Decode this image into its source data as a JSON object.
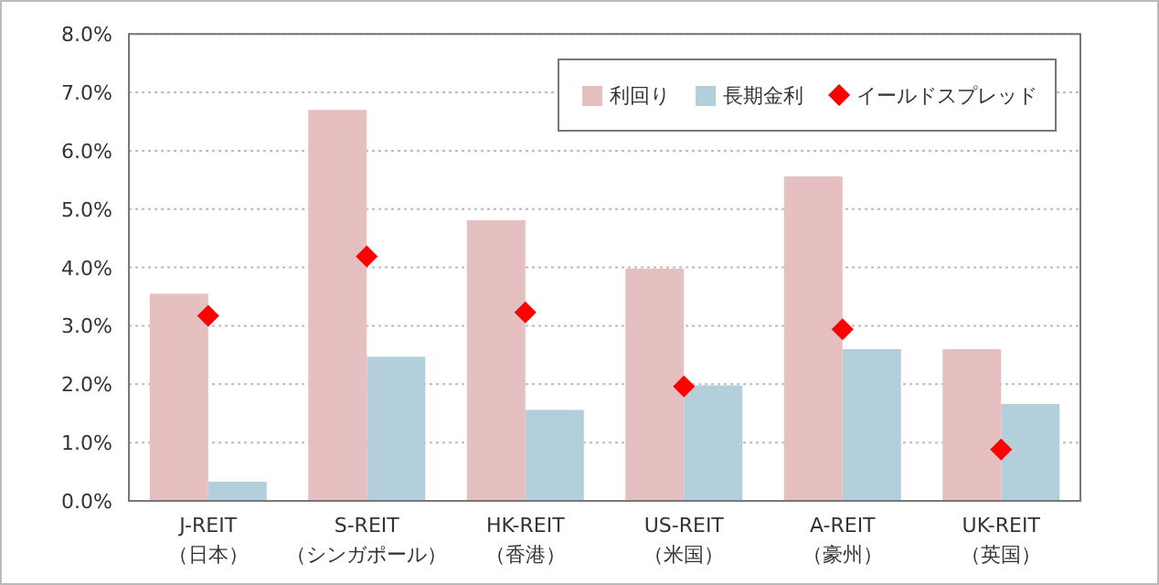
{
  "chart_data": {
    "type": "bar",
    "categories": [
      "J-REIT\n（日本）",
      "S-REIT\n（シンガポール）",
      "HK-REIT\n（香港）",
      "US-REIT\n（米国）",
      "A-REIT\n（豪州）",
      "UK-REIT\n（英国）"
    ],
    "series": [
      {
        "name": "利回り",
        "color": "#e6bfc0",
        "values": [
          3.55,
          6.7,
          4.81,
          3.98,
          5.56,
          2.6
        ]
      },
      {
        "name": "長期金利",
        "color": "#b3cfdb",
        "values": [
          0.33,
          2.47,
          1.56,
          1.98,
          2.6,
          1.66
        ]
      },
      {
        "name": "イールドスプレッド",
        "type": "scatter",
        "marker": "diamond",
        "color": "#ff0000",
        "x": [
          "J-REIT\n（日本）",
          "S-REIT\n（シンガポール）",
          "HK-REIT\n（香港）",
          "US-REIT\n（米国）",
          "A-REIT\n（豪州）",
          "UK-REIT\n（英国）"
        ],
        "values": [
          3.17,
          4.19,
          3.23,
          1.96,
          2.94,
          0.88
        ]
      }
    ],
    "ylim": [
      0,
      8
    ],
    "yticks": [
      {
        "value": 0,
        "label": "0.0%"
      },
      {
        "value": 1,
        "label": "1.0%"
      },
      {
        "value": 2,
        "label": "2.0%"
      },
      {
        "value": 3,
        "label": "3.0%"
      },
      {
        "value": 4,
        "label": "4.0%"
      },
      {
        "value": 5,
        "label": "5.0%"
      },
      {
        "value": 6,
        "label": "6.0%"
      },
      {
        "value": 7,
        "label": "7.0%"
      },
      {
        "value": 8,
        "label": "8.0%"
      }
    ],
    "grid": "y",
    "legend": "top right"
  }
}
